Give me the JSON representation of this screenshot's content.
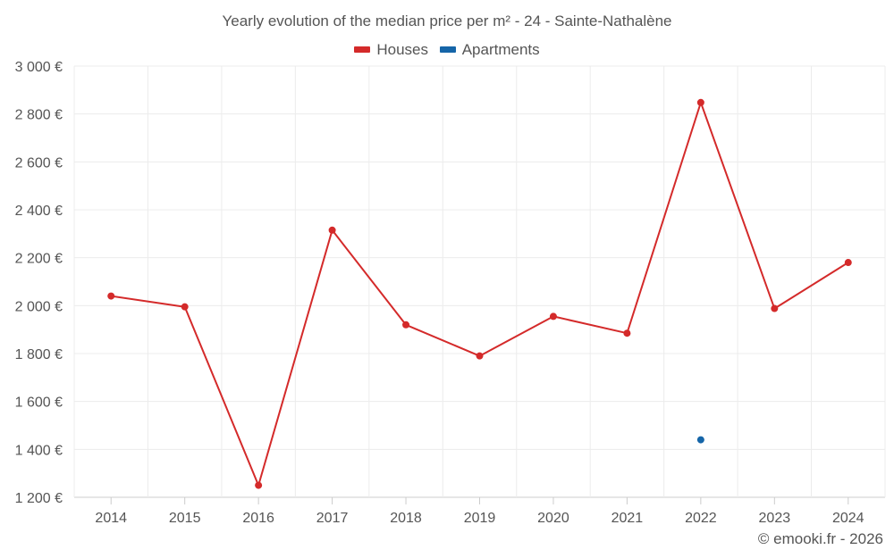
{
  "chart_data": {
    "type": "line",
    "title": "Yearly evolution of the median price per m² - 24 - Sainte-Nathalène",
    "categories": [
      "2014",
      "2015",
      "2016",
      "2017",
      "2018",
      "2019",
      "2020",
      "2021",
      "2022",
      "2023",
      "2024"
    ],
    "ylim": [
      1200,
      3000
    ],
    "yticks": [
      1200,
      1400,
      1600,
      1800,
      2000,
      2200,
      2400,
      2600,
      2800,
      3000
    ],
    "ytick_labels": [
      "1 200 €",
      "1 400 €",
      "1 600 €",
      "1 800 €",
      "2 000 €",
      "2 200 €",
      "2 400 €",
      "2 600 €",
      "2 800 €",
      "3 000 €"
    ],
    "grid": true,
    "legend_position": "top-center",
    "series": [
      {
        "name": "Houses",
        "color": "#d42a2a",
        "values": [
          2040,
          1995,
          1250,
          2315,
          1920,
          1790,
          1955,
          1885,
          2848,
          1988,
          2180
        ]
      },
      {
        "name": "Apartments",
        "color": "#1565a8",
        "values": [
          null,
          null,
          null,
          null,
          null,
          null,
          null,
          null,
          1440,
          null,
          null
        ]
      }
    ]
  },
  "footer": "© emooki.fr - 2026"
}
